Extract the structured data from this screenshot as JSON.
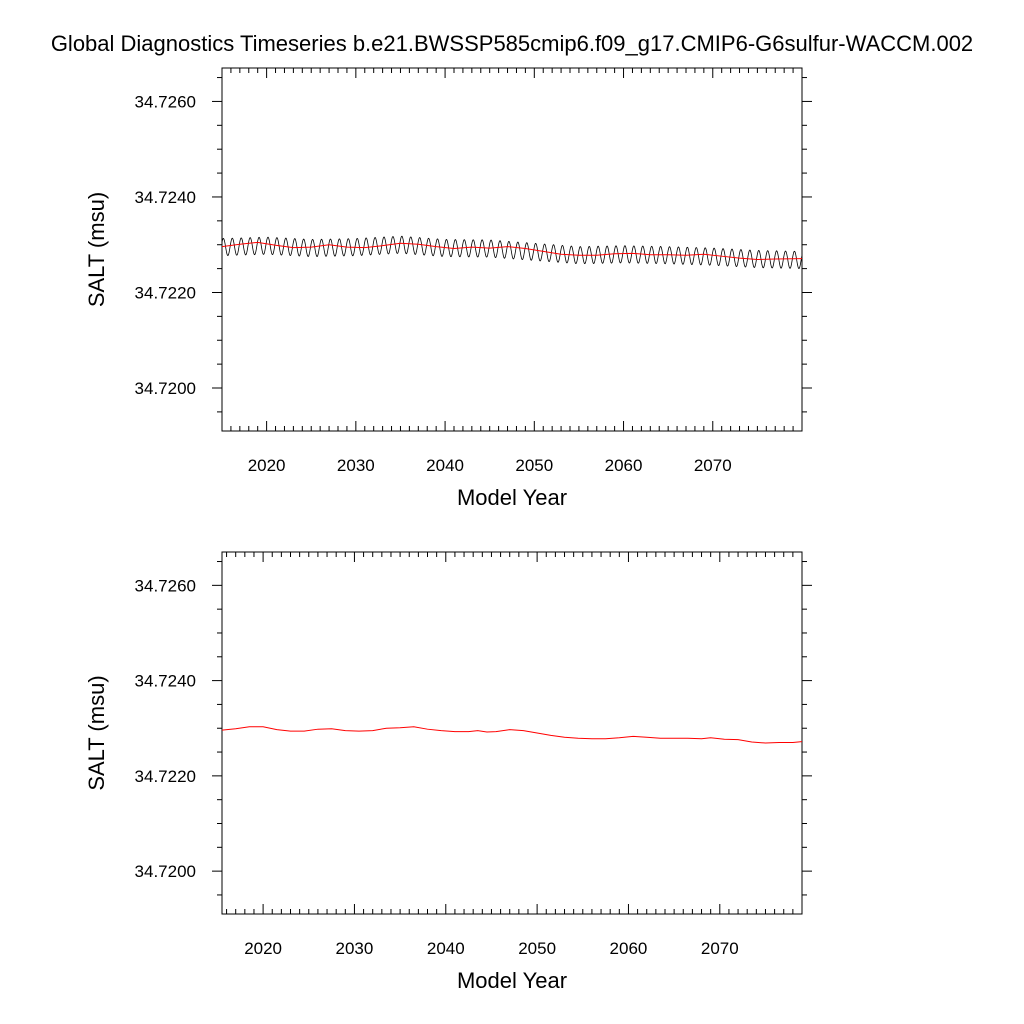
{
  "title": "Global Diagnostics Timeseries b.e21.BWSSP585cmip6.f09_g17.CMIP6-G6sulfur-WACCM.002",
  "colors": {
    "monthly": "#000000",
    "annual": "#ff0000",
    "frame": "#000000"
  },
  "chart_data": [
    {
      "type": "line",
      "title": "",
      "xlabel": "Model Year",
      "ylabel": "SALT (msu)",
      "xlim": [
        2015,
        2080
      ],
      "ylim": [
        34.7191,
        34.7267
      ],
      "xticks": [
        2020,
        2030,
        2040,
        2050,
        2060,
        2070
      ],
      "yticks": [
        34.72,
        34.722,
        34.724,
        34.726
      ],
      "xtick_labels": [
        "2020",
        "2030",
        "2040",
        "2050",
        "2060",
        "2070"
      ],
      "ytick_labels": [
        "34.7200",
        "34.7220",
        "34.7240",
        "34.7260"
      ],
      "grid": false,
      "monthly_series": {
        "start_year": 2015,
        "end_year": 2080,
        "seasonal_amplitude": 0.00018,
        "trend": [
          [
            2015,
            34.72295
          ],
          [
            2020,
            34.72298
          ],
          [
            2025,
            34.72293
          ],
          [
            2030,
            34.72295
          ],
          [
            2035,
            34.723
          ],
          [
            2040,
            34.72293
          ],
          [
            2045,
            34.72292
          ],
          [
            2050,
            34.72285
          ],
          [
            2055,
            34.72278
          ],
          [
            2060,
            34.7228
          ],
          [
            2065,
            34.72278
          ],
          [
            2070,
            34.72275
          ],
          [
            2075,
            34.7227
          ],
          [
            2080,
            34.72268
          ]
        ]
      },
      "series": [
        {
          "values": [
            [
              2015,
              34.72296
            ],
            [
              2017,
              34.72301
            ],
            [
              2019,
              34.72305
            ],
            [
              2021,
              34.72299
            ],
            [
              2023,
              34.72294
            ],
            [
              2025,
              34.72295
            ],
            [
              2027,
              34.723
            ],
            [
              2029,
              34.72295
            ],
            [
              2031,
              34.72294
            ],
            [
              2033,
              34.72298
            ],
            [
              2035,
              34.72303
            ],
            [
              2037,
              34.72301
            ],
            [
              2039,
              34.72296
            ],
            [
              2041,
              34.72292
            ],
            [
              2043,
              34.72295
            ],
            [
              2045,
              34.72293
            ],
            [
              2047,
              34.72296
            ],
            [
              2049,
              34.72292
            ],
            [
              2051,
              34.72286
            ],
            [
              2053,
              34.7228
            ],
            [
              2055,
              34.72278
            ],
            [
              2057,
              34.72278
            ],
            [
              2059,
              34.72281
            ],
            [
              2061,
              34.72282
            ],
            [
              2063,
              34.72279
            ],
            [
              2065,
              34.72279
            ],
            [
              2067,
              34.72278
            ],
            [
              2069,
              34.7228
            ],
            [
              2071,
              34.72276
            ],
            [
              2073,
              34.72272
            ],
            [
              2075,
              34.72269
            ],
            [
              2077,
              34.7227
            ],
            [
              2080,
              34.72271
            ]
          ]
        }
      ]
    },
    {
      "type": "line",
      "title": "",
      "xlabel": "Model Year",
      "ylabel": "SALT (msu)",
      "xlim": [
        2015.5,
        2079
      ],
      "ylim": [
        34.7191,
        34.7267
      ],
      "xticks": [
        2020,
        2030,
        2040,
        2050,
        2060,
        2070
      ],
      "yticks": [
        34.72,
        34.722,
        34.724,
        34.726
      ],
      "xtick_labels": [
        "2020",
        "2030",
        "2040",
        "2050",
        "2060",
        "2070"
      ],
      "ytick_labels": [
        "34.7200",
        "34.7220",
        "34.7240",
        "34.7260"
      ],
      "grid": false,
      "series": [
        {
          "values": [
            [
              2015.5,
              34.72296
            ],
            [
              2017,
              34.72299
            ],
            [
              2018.5,
              34.72303
            ],
            [
              2020,
              34.72303
            ],
            [
              2021.5,
              34.72297
            ],
            [
              2023,
              34.72294
            ],
            [
              2024.5,
              34.72294
            ],
            [
              2026,
              34.72298
            ],
            [
              2027.5,
              34.72299
            ],
            [
              2029,
              34.72295
            ],
            [
              2030.5,
              34.72294
            ],
            [
              2032,
              34.72295
            ],
            [
              2033.5,
              34.723
            ],
            [
              2035,
              34.72301
            ],
            [
              2036.5,
              34.72303
            ],
            [
              2038,
              34.72298
            ],
            [
              2039.5,
              34.72295
            ],
            [
              2041,
              34.72293
            ],
            [
              2042.5,
              34.72293
            ],
            [
              2043.5,
              34.72295
            ],
            [
              2044.5,
              34.72292
            ],
            [
              2045.5,
              34.72293
            ],
            [
              2047,
              34.72297
            ],
            [
              2048.5,
              34.72295
            ],
            [
              2050,
              34.7229
            ],
            [
              2051.5,
              34.72285
            ],
            [
              2053,
              34.72281
            ],
            [
              2054.5,
              34.72279
            ],
            [
              2056,
              34.72278
            ],
            [
              2057.5,
              34.72278
            ],
            [
              2059,
              34.7228
            ],
            [
              2060.5,
              34.72283
            ],
            [
              2062,
              34.72281
            ],
            [
              2063.5,
              34.72279
            ],
            [
              2065,
              34.72279
            ],
            [
              2066.5,
              34.72279
            ],
            [
              2068,
              34.72278
            ],
            [
              2069,
              34.7228
            ],
            [
              2070.5,
              34.72277
            ],
            [
              2072,
              34.72276
            ],
            [
              2073.5,
              34.72271
            ],
            [
              2075,
              34.72269
            ],
            [
              2076.5,
              34.7227
            ],
            [
              2078,
              34.7227
            ],
            [
              2079,
              34.72272
            ]
          ]
        }
      ]
    }
  ]
}
